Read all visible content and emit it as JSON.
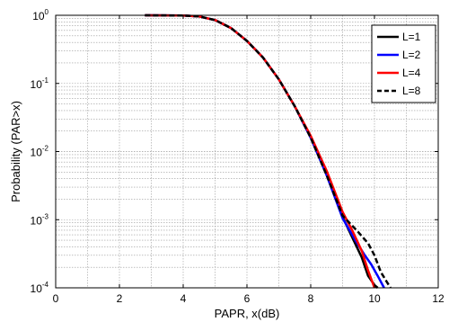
{
  "chart_data": {
    "type": "line",
    "title": "",
    "xlabel": "PAPR, x(dB)",
    "ylabel": "Probability (PAR>x)",
    "xlim": [
      0,
      12
    ],
    "ylim": [
      0.0001,
      1
    ],
    "yscale": "log",
    "grid": true,
    "legend_position": "top-right",
    "xticks": [
      "0",
      "2",
      "4",
      "6",
      "8",
      "10",
      "12"
    ],
    "yticks": [
      {
        "base": "10",
        "exp": "-4"
      },
      {
        "base": "10",
        "exp": "-3"
      },
      {
        "base": "10",
        "exp": "-2"
      },
      {
        "base": "10",
        "exp": "-1"
      },
      {
        "base": "10",
        "exp": "0"
      }
    ],
    "series": [
      {
        "name": "L=1",
        "color": "#000000",
        "dash": "solid",
        "x": [
          2.8,
          4.0,
          4.5,
          5.0,
          5.5,
          6.0,
          6.5,
          7.0,
          7.5,
          8.0,
          8.5,
          9.0,
          9.3,
          9.6,
          9.8,
          10.0,
          10.1
        ],
        "y": [
          1.0,
          0.99,
          0.96,
          0.85,
          0.65,
          0.42,
          0.24,
          0.115,
          0.046,
          0.016,
          0.0045,
          0.0011,
          0.00055,
          0.00028,
          0.00015,
          0.00011,
          0.0001
        ]
      },
      {
        "name": "L=2",
        "color": "#0000ff",
        "dash": "solid",
        "x": [
          2.8,
          4.0,
          4.5,
          5.0,
          5.5,
          6.0,
          6.5,
          7.0,
          7.5,
          8.0,
          8.5,
          9.0,
          9.4,
          9.7,
          9.9,
          10.1,
          10.3
        ],
        "y": [
          1.0,
          0.99,
          0.96,
          0.85,
          0.65,
          0.42,
          0.24,
          0.115,
          0.046,
          0.016,
          0.0045,
          0.00105,
          0.0005,
          0.0003,
          0.00022,
          0.00015,
          0.0001
        ]
      },
      {
        "name": "L=4",
        "color": "#ff0000",
        "dash": "solid",
        "x": [
          2.8,
          4.0,
          4.5,
          5.0,
          5.5,
          6.0,
          6.5,
          7.0,
          7.5,
          8.0,
          8.5,
          9.0,
          9.3,
          9.6,
          9.8,
          10.0
        ],
        "y": [
          1.0,
          0.99,
          0.96,
          0.85,
          0.65,
          0.42,
          0.24,
          0.115,
          0.046,
          0.017,
          0.0052,
          0.0013,
          0.0007,
          0.00035,
          0.00018,
          0.0001
        ]
      },
      {
        "name": "L=8",
        "color": "#000000",
        "dash": "dashed",
        "x": [
          2.8,
          4.0,
          4.5,
          5.0,
          5.5,
          6.0,
          6.5,
          7.0,
          7.5,
          8.0,
          8.5,
          9.0,
          9.5,
          9.8,
          10.0,
          10.2,
          10.5
        ],
        "y": [
          1.0,
          0.99,
          0.96,
          0.85,
          0.65,
          0.42,
          0.24,
          0.115,
          0.046,
          0.016,
          0.0045,
          0.00115,
          0.00065,
          0.00045,
          0.0003,
          0.00017,
          0.0001
        ]
      }
    ]
  }
}
